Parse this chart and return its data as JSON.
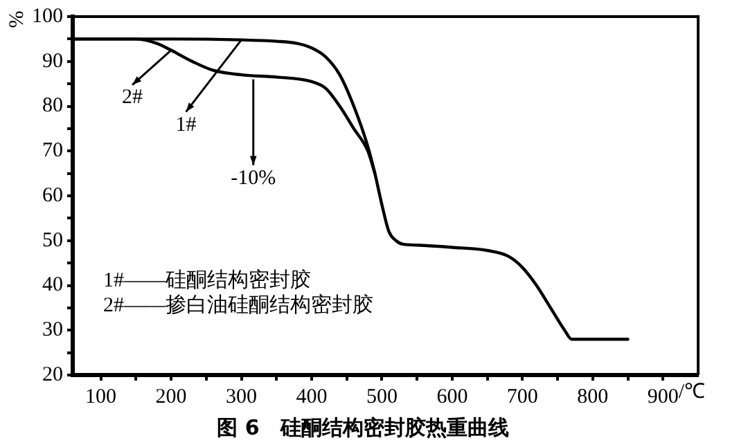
{
  "chart_data": {
    "type": "line",
    "title": "图 6　硅酮结构密封胶热重曲线",
    "xlabel": "/℃",
    "ylabel": "%",
    "xlim": [
      60,
      950
    ],
    "ylim": [
      20,
      100
    ],
    "xticks": [
      100,
      {
        "value": 150,
        "label": null
      },
      200,
      {
        "value": 250,
        "label": null
      },
      300,
      {
        "value": 350,
        "label": null
      },
      400,
      {
        "value": 450,
        "label": null
      },
      500,
      {
        "value": 550,
        "label": null
      },
      600,
      {
        "value": 650,
        "label": null
      },
      700,
      {
        "value": 750,
        "label": null
      },
      800,
      {
        "value": 850,
        "label": null
      },
      900
    ],
    "yticks": [
      20,
      {
        "value": 25,
        "label": null
      },
      30,
      {
        "value": 35,
        "label": null
      },
      40,
      {
        "value": 45,
        "label": null
      },
      50,
      {
        "value": 55,
        "label": null
      },
      60,
      {
        "value": 65,
        "label": null
      },
      70,
      {
        "value": 75,
        "label": null
      },
      80,
      {
        "value": 85,
        "label": null
      },
      90,
      {
        "value": 95,
        "label": null
      },
      100
    ],
    "grid": false,
    "legend": "top left",
    "marker": "none",
    "line_style": "solid",
    "series": [
      {
        "name": "1#",
        "color": "#000000",
        "x": [
          60,
          100,
          200,
          300,
          350,
          380,
          400,
          420,
          440,
          460,
          480,
          490,
          500,
          510,
          520,
          530,
          550,
          600,
          650,
          680,
          700,
          720,
          740,
          760,
          770,
          800,
          850
        ],
        "values": [
          95,
          95,
          95,
          94.8,
          94.5,
          94,
          93,
          91,
          87,
          80,
          71,
          65,
          58,
          52,
          50,
          49.2,
          49,
          48.5,
          47.8,
          46.5,
          44,
          40,
          35,
          30,
          28,
          28,
          28
        ]
      },
      {
        "name": "2#",
        "color": "#000000",
        "x": [
          60,
          150,
          180,
          200,
          230,
          260,
          300,
          350,
          400,
          420,
          440,
          460,
          480,
          490
        ],
        "values": [
          95,
          95,
          94,
          92.5,
          90,
          88,
          87,
          86.5,
          85.5,
          84,
          80,
          75,
          70,
          65
        ]
      }
    ],
    "annotations": [
      {
        "text": "-10%",
        "x": 317,
        "y": 86
      },
      "1#——硅酮结构密封胶",
      "2#——掺白油硅酮结构密封胶"
    ]
  }
}
